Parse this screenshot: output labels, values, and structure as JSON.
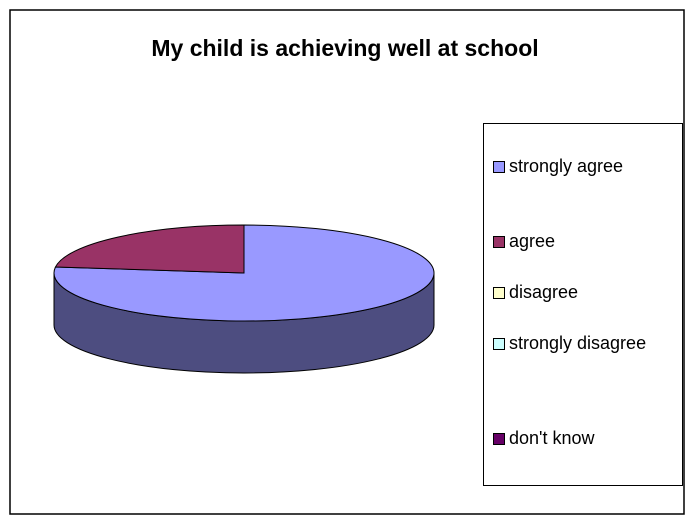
{
  "chart_data": {
    "type": "pie",
    "title": "My child is achieving well at school",
    "categories": [
      "strongly agree",
      "agree",
      "disagree",
      "strongly disagree",
      "don't know"
    ],
    "values": [
      77,
      23,
      0,
      0,
      0
    ],
    "colors": [
      "#9999ff",
      "#993366",
      "#ffffcc",
      "#ccffff",
      "#660066"
    ],
    "legend": "right"
  }
}
